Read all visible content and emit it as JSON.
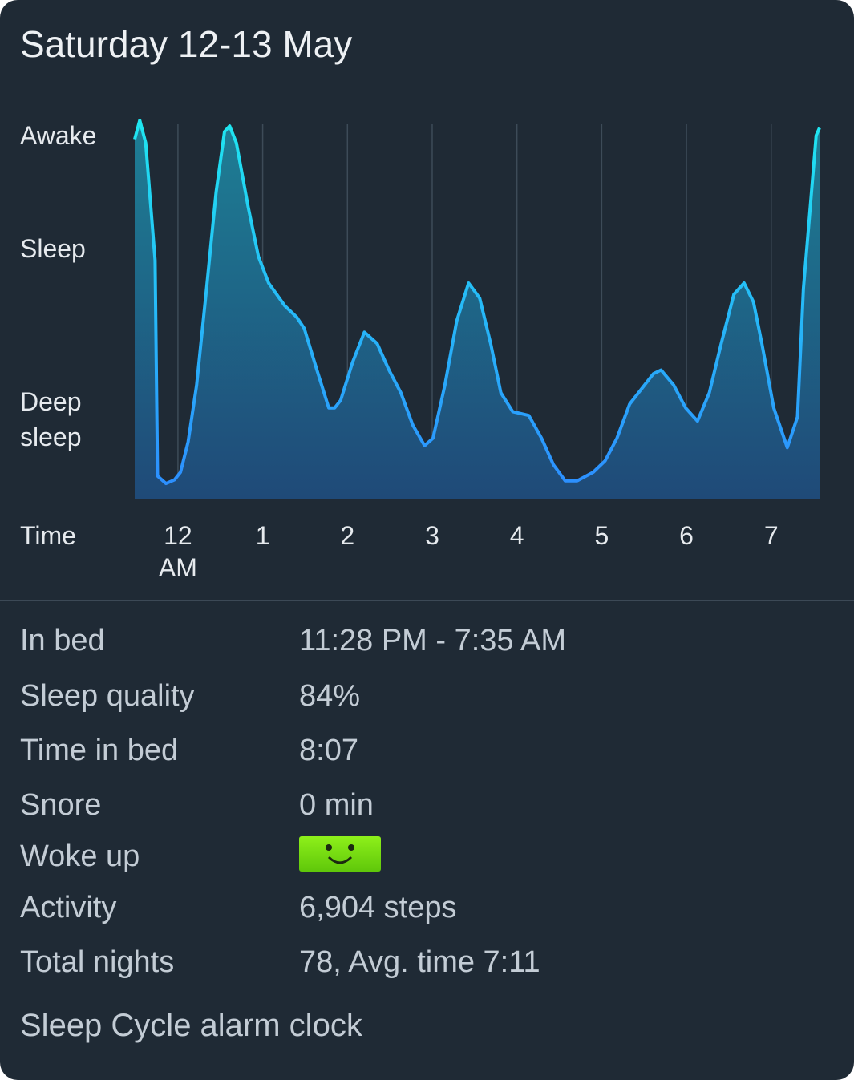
{
  "title": "Saturday 12-13 May",
  "chart_data": {
    "type": "area",
    "xlabel": "Time",
    "x": [
      -0.51,
      -0.45,
      -0.38,
      -0.27,
      -0.24,
      -0.14,
      -0.04,
      0.03,
      0.12,
      0.22,
      0.34,
      0.45,
      0.55,
      0.61,
      0.69,
      0.83,
      0.95,
      1.07,
      1.26,
      1.4,
      1.49,
      1.64,
      1.78,
      1.85,
      1.92,
      2.06,
      2.2,
      2.35,
      2.49,
      2.63,
      2.77,
      2.91,
      3.01,
      3.15,
      3.29,
      3.43,
      3.56,
      3.69,
      3.81,
      3.95,
      4.14,
      4.29,
      4.43,
      4.57,
      4.71,
      4.9,
      5.04,
      5.18,
      5.33,
      5.47,
      5.61,
      5.7,
      5.85,
      5.99,
      6.13,
      6.27,
      6.41,
      6.56,
      6.68,
      6.79,
      6.89,
      7.03,
      7.19,
      7.31,
      7.38,
      7.46,
      7.53,
      7.57
    ],
    "values": [
      95,
      100,
      94,
      63,
      6,
      4,
      5,
      7,
      15,
      30,
      56,
      81,
      97,
      98.5,
      94,
      77,
      64,
      57,
      51,
      48,
      45,
      34,
      24,
      24,
      26,
      36,
      44,
      41,
      34,
      28,
      19.5,
      14,
      16,
      30,
      47,
      57,
      53,
      41,
      28,
      23,
      22,
      16,
      9,
      4.7,
      4.7,
      7,
      10,
      16,
      25,
      29,
      33,
      34,
      30,
      24,
      20.5,
      28,
      41,
      54,
      57,
      52,
      41,
      24,
      13.5,
      21.6,
      55.5,
      77,
      96,
      98
    ],
    "color": "#29b6f6",
    "xlim": [
      -0.51,
      7.57
    ],
    "ylim": [
      0,
      100
    ],
    "xticks": [
      {
        "value": 0,
        "label": "12 AM"
      },
      1,
      2,
      3,
      4,
      5,
      6,
      7
    ],
    "yticks": [
      {
        "value": 96,
        "label": "Awake"
      },
      {
        "value": 66,
        "label": "Sleep"
      },
      {
        "value": 21,
        "label": "Deep sleep"
      }
    ],
    "grid": true
  },
  "details": [
    {
      "label": "In bed",
      "value": "11:28 PM - 7:35 AM"
    },
    {
      "label": "Sleep quality",
      "value": "84%"
    },
    {
      "label": "Time in bed",
      "value": "8:07"
    },
    {
      "label": "Snore",
      "value": "0 min"
    },
    {
      "label": "Woke up"
    },
    {
      "label": "Activity",
      "value": "6,904 steps"
    },
    {
      "label": "Total nights",
      "value": "78, Avg. time 7:11"
    }
  ],
  "footer": "Sleep Cycle alarm clock"
}
